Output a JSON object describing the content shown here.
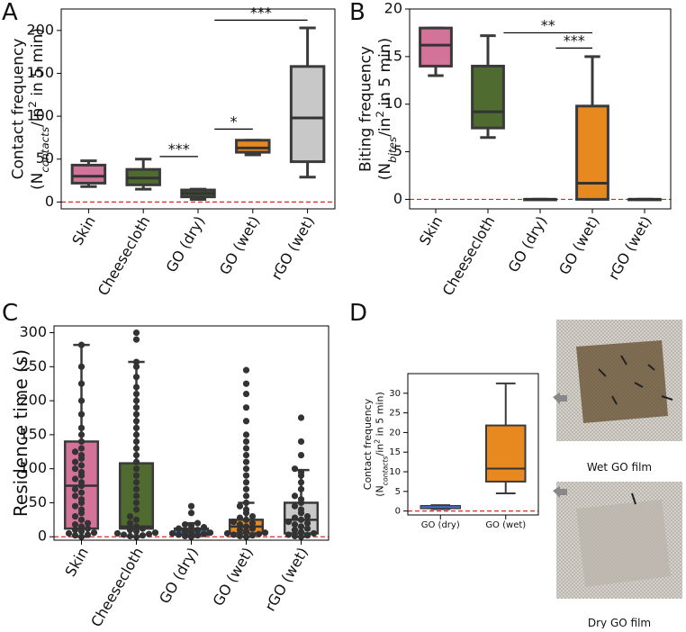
{
  "chart_data": [
    {
      "type": "box",
      "panel": "A",
      "ylabel": [
        [
          {
            "text": "Contact frequency"
          }
        ],
        [
          {
            "text": "(N"
          },
          {
            "text": "contacts",
            "script": "sub"
          },
          {
            "text": "/in"
          },
          {
            "text": "2",
            "script": "sup"
          },
          {
            "text": " in 5 min)"
          }
        ]
      ],
      "categories": [
        "Skin",
        "Cheesecloth",
        "GO (dry)",
        "GO (wet)",
        "rGO (wet)"
      ],
      "boxes": [
        {
          "color": "#d4739a",
          "median_color": "#333333",
          "whislo": 18,
          "q1": 22,
          "med": 30,
          "q3": 43,
          "whishi": 48
        },
        {
          "color": "#4f6b2f",
          "median_color": "#333333",
          "whislo": 15,
          "q1": 20,
          "med": 28,
          "q3": 38,
          "whishi": 50
        },
        {
          "color": "#3f5a2c",
          "median_color": "#333333",
          "whislo": 3,
          "q1": 6,
          "med": 10,
          "q3": 14,
          "whishi": 15
        },
        {
          "color": "#e8891f",
          "median_color": "#333333",
          "whislo": 55,
          "q1": 58,
          "med": 63,
          "q3": 72,
          "whishi": 72
        },
        {
          "color": "#c8c8c8",
          "median_color": "#333333",
          "whislo": 29,
          "q1": 47,
          "med": 98,
          "q3": 158,
          "whishi": 203
        }
      ],
      "annotations": [
        {
          "text": "***",
          "between": [
            1,
            2
          ],
          "y": 53
        },
        {
          "text": "*",
          "between": [
            2,
            3
          ],
          "y": 85
        },
        {
          "text": "***",
          "between": [
            2,
            4
          ],
          "y": 212
        }
      ],
      "reference_line": {
        "y": 0,
        "color": "#d62728"
      },
      "ylim": [
        -8,
        225
      ],
      "yticks": [
        0,
        50,
        100,
        150,
        200
      ]
    },
    {
      "type": "box",
      "panel": "B",
      "ylabel": [
        [
          {
            "text": "Biting frequency"
          }
        ],
        [
          {
            "text": "(N"
          },
          {
            "text": "bites",
            "script": "sub"
          },
          {
            "text": "/in"
          },
          {
            "text": "2",
            "script": "sup"
          },
          {
            "text": " in 5 min)"
          }
        ]
      ],
      "categories": [
        "Skin",
        "Cheesecloth",
        "GO (dry)",
        "GO (wet)",
        "rGO (wet)"
      ],
      "boxes": [
        {
          "color": "#d4739a",
          "median_color": "#333333",
          "whislo": 13,
          "q1": 14,
          "med": 16.2,
          "q3": 18,
          "whishi": 18
        },
        {
          "color": "#4f6b2f",
          "median_color": "#333333",
          "whislo": 6.5,
          "q1": 7.5,
          "med": 9.2,
          "q3": 14,
          "whishi": 17.2
        },
        {
          "color": "#3f5a2c",
          "median_color": "#333333",
          "whislo": 0,
          "q1": 0,
          "med": 0,
          "q3": 0,
          "whishi": 0
        },
        {
          "color": "#e8891f",
          "median_color": "#333333",
          "whislo": 0,
          "q1": 0,
          "med": 1.7,
          "q3": 9.8,
          "whishi": 15
        },
        {
          "color": "#c8c8c8",
          "median_color": "#333333",
          "whislo": 0,
          "q1": 0,
          "med": 0,
          "q3": 0,
          "whishi": 0
        }
      ],
      "annotations": [
        {
          "text": "**",
          "between": [
            1,
            3
          ],
          "y": 17.5
        },
        {
          "text": "***",
          "between": [
            2,
            3
          ],
          "y": 15.9
        }
      ],
      "reference_line": {
        "y": 0,
        "color": "#d62728"
      },
      "ylim": [
        -1,
        20
      ],
      "yticks": [
        0,
        5,
        10,
        15,
        20
      ]
    },
    {
      "type": "box",
      "panel": "C",
      "ylabel": [
        [
          {
            "text": "Residence time (s)"
          }
        ]
      ],
      "categories": [
        "Skin",
        "Cheesecloth",
        "GO (dry)",
        "GO (wet)",
        "rGO (wet)"
      ],
      "boxes": [
        {
          "color": "#d4739a",
          "median_color": "#333333",
          "whislo": 0,
          "q1": 12,
          "med": 75,
          "q3": 140,
          "whishi": 282
        },
        {
          "color": "#4f6b2f",
          "median_color": "#333333",
          "whislo": 0,
          "q1": 12,
          "med": 15,
          "q3": 108,
          "whishi": 257
        },
        {
          "color": "#3f5a2c",
          "median_color": "#3b6fd4",
          "whislo": 0,
          "q1": 3,
          "med": 7,
          "q3": 12,
          "whishi": 20
        },
        {
          "color": "#e8891f",
          "median_color": "#333333",
          "whislo": 0,
          "q1": 5,
          "med": 15,
          "q3": 25,
          "whishi": 50
        },
        {
          "color": "#c8c8c8",
          "median_color": "#333333",
          "whislo": 0,
          "q1": 5,
          "med": 25,
          "q3": 50,
          "whishi": 98
        }
      ],
      "points": [
        [
          0,
          2,
          3,
          5,
          6,
          8,
          10,
          12,
          15,
          18,
          20,
          25,
          30,
          35,
          40,
          45,
          50,
          55,
          60,
          65,
          70,
          75,
          80,
          85,
          90,
          95,
          100,
          105,
          110,
          115,
          120,
          125,
          130,
          140,
          150,
          160,
          180,
          200,
          225,
          250,
          282
        ],
        [
          0,
          1,
          2,
          3,
          4,
          5,
          6,
          8,
          10,
          12,
          15,
          20,
          25,
          30,
          40,
          50,
          60,
          70,
          80,
          90,
          100,
          110,
          120,
          130,
          140,
          150,
          160,
          170,
          180,
          190,
          200,
          210,
          220,
          235,
          250,
          257,
          290,
          300
        ],
        [
          0,
          1,
          2,
          3,
          4,
          5,
          6,
          7,
          8,
          10,
          12,
          14,
          16,
          18,
          20,
          35,
          45
        ],
        [
          0,
          1,
          2,
          3,
          4,
          5,
          6,
          8,
          10,
          12,
          15,
          18,
          20,
          22,
          25,
          28,
          30,
          35,
          40,
          45,
          50,
          60,
          70,
          80,
          90,
          100,
          110,
          120,
          130,
          140,
          150,
          170,
          190,
          210,
          225,
          245
        ],
        [
          0,
          1,
          2,
          3,
          5,
          7,
          10,
          12,
          15,
          18,
          20,
          22,
          25,
          28,
          30,
          35,
          40,
          45,
          50,
          55,
          60,
          70,
          80,
          90,
          95,
          100,
          120,
          140,
          175
        ]
      ],
      "reference_line": {
        "y": 0,
        "color": "#d62728"
      },
      "ylim": [
        -5,
        310
      ],
      "yticks": [
        0,
        50,
        100,
        150,
        200,
        250,
        300
      ]
    },
    {
      "type": "box",
      "panel": "D",
      "ylabel": [
        [
          {
            "text": "Contact frequency"
          }
        ],
        [
          {
            "text": "(N"
          },
          {
            "text": "contacts",
            "script": "sub"
          },
          {
            "text": "/in"
          },
          {
            "text": "2",
            "script": "sup"
          },
          {
            "text": " in 5 min)"
          }
        ]
      ],
      "categories": [
        "GO (dry)",
        "GO (wet)"
      ],
      "boxes": [
        {
          "color": "#e8891f",
          "median_color": "#3b6fd4",
          "whislo": 0.5,
          "q1": 0.7,
          "med": 1,
          "q3": 1.3,
          "whishi": 1.5
        },
        {
          "color": "#e8891f",
          "median_color": "#333333",
          "whislo": 4.5,
          "q1": 7.5,
          "med": 10.8,
          "q3": 21.8,
          "whishi": 32.5
        }
      ],
      "reference_line": {
        "y": 0,
        "color": "#d62728"
      },
      "ylim": [
        -1,
        35
      ],
      "yticks": [
        0,
        5,
        10,
        15,
        20,
        25,
        30
      ],
      "images": [
        {
          "caption": "Wet GO film"
        },
        {
          "caption": "Dry GO film"
        }
      ]
    }
  ]
}
